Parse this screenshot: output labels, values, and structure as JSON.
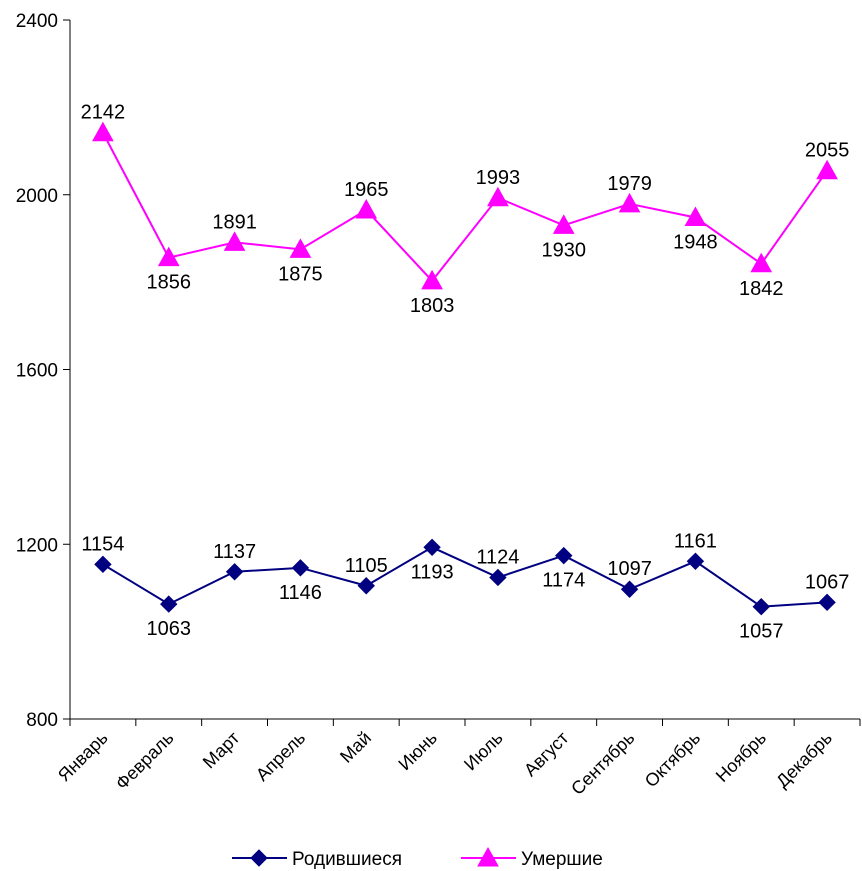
{
  "chart_data": {
    "type": "line",
    "categories": [
      "Январь",
      "Февраль",
      "Март",
      "Апрель",
      "Май",
      "Июнь",
      "Июль",
      "Август",
      "Сентябрь",
      "Октябрь",
      "Ноябрь",
      "Декабрь"
    ],
    "series": [
      {
        "name": "Родившиеся",
        "values": [
          1154,
          1063,
          1137,
          1146,
          1105,
          1193,
          1124,
          1174,
          1097,
          1161,
          1057,
          1067
        ],
        "color": "#000080",
        "marker": "diamond",
        "label_positions": [
          "above",
          "below",
          "above",
          "below",
          "above",
          "below",
          "above",
          "below",
          "above",
          "above",
          "below",
          "above"
        ]
      },
      {
        "name": "Умершие",
        "values": [
          2142,
          1856,
          1891,
          1875,
          1965,
          1803,
          1993,
          1930,
          1979,
          1948,
          1842,
          2055
        ],
        "color": "#FF00FF",
        "marker": "triangle",
        "label_positions": [
          "above",
          "below",
          "above",
          "below",
          "above",
          "below",
          "above",
          "below",
          "above",
          "below",
          "below",
          "above"
        ]
      }
    ],
    "ylim": [
      800,
      2400
    ],
    "yticks": [
      800,
      1200,
      1600,
      2000,
      2400
    ],
    "grid": false,
    "legend": "bottom",
    "title": "",
    "xlabel": "",
    "ylabel": ""
  }
}
